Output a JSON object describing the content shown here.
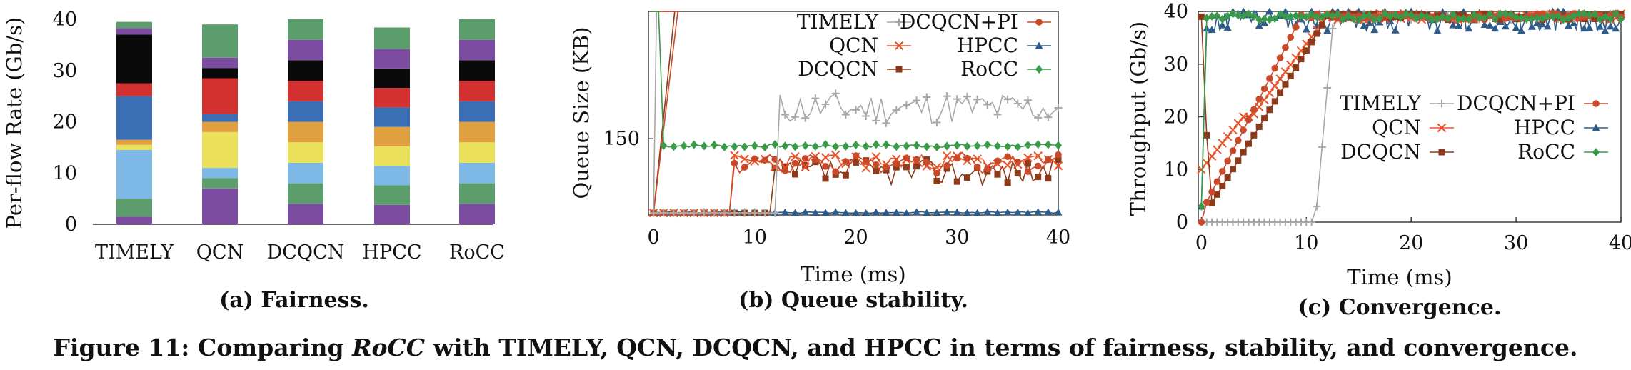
{
  "figure": {
    "caption_lead": "Figure 11: Comparing ",
    "caption_em": "RoCC",
    "caption_rest": " with TIMELY, QCN, DCQCN, and HPCC in terms of fairness, stability, and convergence."
  },
  "chart_data": [
    {
      "id": "a",
      "type": "bar",
      "stacked": true,
      "subtitle": "(a) Fairness.",
      "xlabel": "",
      "ylabel": "Per-flow Rate (Gb/s)",
      "ylim": [
        0,
        40
      ],
      "yticks": [
        0,
        10,
        20,
        30,
        40
      ],
      "categories": [
        "TIMELY",
        "QCN",
        "DCQCN",
        "HPCC",
        "RoCC"
      ],
      "segment_colors": [
        "#7b4ca0",
        "#5b9e6b",
        "#7db8e6",
        "#eae05a",
        "#e0a040",
        "#3a6eb5",
        "#d33030",
        "#0a0a0a",
        "#7b4ca0",
        "#5b9e6b"
      ],
      "segments": [
        [
          1.5,
          3.5,
          9.5,
          1.0,
          1.0,
          8.5,
          2.5,
          9.5,
          1.3,
          1.2
        ],
        [
          7.0,
          2.0,
          2.0,
          7.0,
          2.0,
          1.5,
          7.0,
          2.0,
          2.0,
          6.5
        ],
        [
          4.0,
          4.0,
          4.0,
          4.0,
          4.0,
          4.0,
          4.0,
          4.0,
          4.0,
          4.0
        ],
        [
          3.8,
          3.8,
          3.8,
          3.8,
          3.8,
          3.8,
          3.8,
          3.8,
          3.8,
          4.2
        ],
        [
          4.0,
          4.0,
          4.0,
          4.0,
          4.0,
          4.0,
          4.0,
          4.0,
          4.0,
          4.0
        ]
      ]
    },
    {
      "id": "b",
      "type": "line",
      "subtitle": "(b) Queue stability.",
      "xlabel": "Time (ms)",
      "ylabel": "Queue Size (KB)",
      "xlim": [
        -0.5,
        40
      ],
      "ylim": [
        0,
        400
      ],
      "xticks": [
        0,
        10,
        20,
        30,
        40
      ],
      "yticks": [
        150
      ],
      "legend": "top",
      "series": [
        {
          "name": "TIMELY",
          "color": "#a8a8a8",
          "marker": "plus",
          "base": 210,
          "amp": 32,
          "seed": 11,
          "start": 12.5
        },
        {
          "name": "QCN",
          "color": "#e8532a",
          "marker": "x",
          "base": 105,
          "amp": 14,
          "seed": 23,
          "start": 8
        },
        {
          "name": "DCQCN",
          "color": "#8b3a1a",
          "marker": "square",
          "base": 85,
          "amp": 26,
          "seed": 37,
          "start": 12
        },
        {
          "name": "DCQCN+PI",
          "color": "#c94a2a",
          "marker": "circle",
          "base": 102,
          "amp": 10,
          "seed": 41,
          "start": 8
        },
        {
          "name": "HPCC",
          "color": "#2e5c8a",
          "marker": "triangle",
          "base": 5,
          "amp": 2,
          "seed": 5,
          "start": 0
        },
        {
          "name": "RoCC",
          "color": "#3a9a4a",
          "marker": "diamond",
          "base": 136,
          "amp": 3,
          "seed": 7,
          "start": 1
        }
      ]
    },
    {
      "id": "c",
      "type": "line",
      "subtitle": "(c) Convergence.",
      "xlabel": "Time (ms)",
      "ylabel": "Throughput (Gb/s)",
      "xlim": [
        -0.3,
        40
      ],
      "ylim": [
        0,
        40
      ],
      "xticks": [
        0,
        10,
        20,
        30,
        40
      ],
      "yticks": [
        0,
        10,
        20,
        30,
        40
      ],
      "legend": "center-right",
      "series": [
        {
          "name": "TIMELY",
          "color": "#a8a8a8",
          "marker": "plus",
          "rise_start": 11,
          "rise_end": 12.6,
          "start": 0
        },
        {
          "name": "QCN",
          "color": "#e8532a",
          "marker": "x",
          "rise_start": 0,
          "rise_end": 12,
          "start": 0
        },
        {
          "name": "DCQCN",
          "color": "#8b3a1a",
          "marker": "square",
          "rise_start": 0.8,
          "rise_end": 12,
          "start": 0
        },
        {
          "name": "DCQCN+PI",
          "color": "#c94a2a",
          "marker": "circle",
          "rise_start": 0.3,
          "rise_end": 9.5,
          "start": 0
        },
        {
          "name": "HPCC",
          "color": "#2e5c8a",
          "marker": "triangle",
          "rise_start": 0,
          "rise_end": 0.5,
          "start": 0
        },
        {
          "name": "RoCC",
          "color": "#3a9a4a",
          "marker": "diamond",
          "rise_start": 0,
          "rise_end": 0.2,
          "start": 0
        }
      ]
    }
  ]
}
